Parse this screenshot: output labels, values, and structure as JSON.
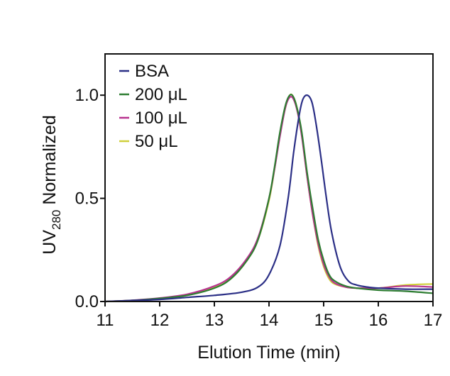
{
  "chart_data": {
    "type": "line",
    "xlabel": "Elution Time (min)",
    "ylabel": {
      "main": "UV",
      "subscript": "280",
      "rest": " Normalized"
    },
    "xlim": [
      11,
      17
    ],
    "ylim": [
      0,
      1.2
    ],
    "x_ticks": [
      11,
      12,
      13,
      14,
      15,
      16,
      17
    ],
    "y_ticks": [
      {
        "value": 0,
        "label": "0.0"
      },
      {
        "value": 0.5,
        "label": "0.5"
      },
      {
        "value": 1.0,
        "label": "1.0"
      }
    ],
    "grid": false,
    "legend_position": "top-left",
    "series": [
      {
        "name": "BSA",
        "color": "#2b2f86",
        "x": [
          11.0,
          11.5,
          12.0,
          12.5,
          13.0,
          13.5,
          13.8,
          14.0,
          14.2,
          14.35,
          14.45,
          14.55,
          14.62,
          14.7,
          14.78,
          14.85,
          14.95,
          15.05,
          15.15,
          15.3,
          15.45,
          15.6,
          15.8,
          16.0,
          16.5,
          17.0
        ],
        "y": [
          0.0,
          0.005,
          0.01,
          0.02,
          0.03,
          0.045,
          0.07,
          0.13,
          0.27,
          0.5,
          0.72,
          0.9,
          0.98,
          1.0,
          0.97,
          0.88,
          0.7,
          0.5,
          0.33,
          0.17,
          0.1,
          0.08,
          0.07,
          0.065,
          0.06,
          0.06
        ]
      },
      {
        "name": "200 μL",
        "color": "#2e7d32",
        "x": [
          11.0,
          11.5,
          12.0,
          12.5,
          13.0,
          13.3,
          13.6,
          13.8,
          14.0,
          14.1,
          14.2,
          14.3,
          14.38,
          14.45,
          14.52,
          14.6,
          14.7,
          14.8,
          14.9,
          15.0,
          15.1,
          15.2,
          15.4,
          15.6,
          16.0,
          16.5,
          17.0
        ],
        "y": [
          0.0,
          0.005,
          0.015,
          0.03,
          0.065,
          0.11,
          0.2,
          0.3,
          0.5,
          0.65,
          0.82,
          0.95,
          1.0,
          0.99,
          0.93,
          0.82,
          0.62,
          0.45,
          0.3,
          0.2,
          0.13,
          0.1,
          0.075,
          0.065,
          0.055,
          0.05,
          0.04
        ]
      },
      {
        "name": "100 μL",
        "color": "#b8338f",
        "x": [
          11.0,
          11.5,
          12.0,
          12.5,
          13.0,
          13.3,
          13.6,
          13.8,
          14.0,
          14.1,
          14.2,
          14.3,
          14.38,
          14.45,
          14.52,
          14.6,
          14.7,
          14.8,
          14.9,
          15.0,
          15.1,
          15.2,
          15.4,
          15.6,
          16.0,
          16.5,
          17.0
        ],
        "y": [
          0.0,
          0.006,
          0.017,
          0.035,
          0.075,
          0.12,
          0.21,
          0.31,
          0.5,
          0.64,
          0.8,
          0.94,
          0.99,
          0.98,
          0.92,
          0.8,
          0.6,
          0.42,
          0.28,
          0.18,
          0.12,
          0.09,
          0.07,
          0.065,
          0.065,
          0.075,
          0.07
        ]
      },
      {
        "name": "50 μL",
        "color": "#cfcf3a",
        "x": [
          11.0,
          11.5,
          12.0,
          12.5,
          13.0,
          13.3,
          13.6,
          13.8,
          14.0,
          14.1,
          14.2,
          14.3,
          14.38,
          14.45,
          14.52,
          14.6,
          14.7,
          14.8,
          14.9,
          15.0,
          15.1,
          15.2,
          15.4,
          15.6,
          16.0,
          16.5,
          17.0
        ],
        "y": [
          0.0,
          0.005,
          0.014,
          0.03,
          0.068,
          0.11,
          0.2,
          0.3,
          0.49,
          0.64,
          0.81,
          0.94,
          1.0,
          0.99,
          0.93,
          0.81,
          0.6,
          0.42,
          0.27,
          0.17,
          0.11,
          0.085,
          0.07,
          0.065,
          0.065,
          0.08,
          0.085
        ]
      }
    ]
  }
}
